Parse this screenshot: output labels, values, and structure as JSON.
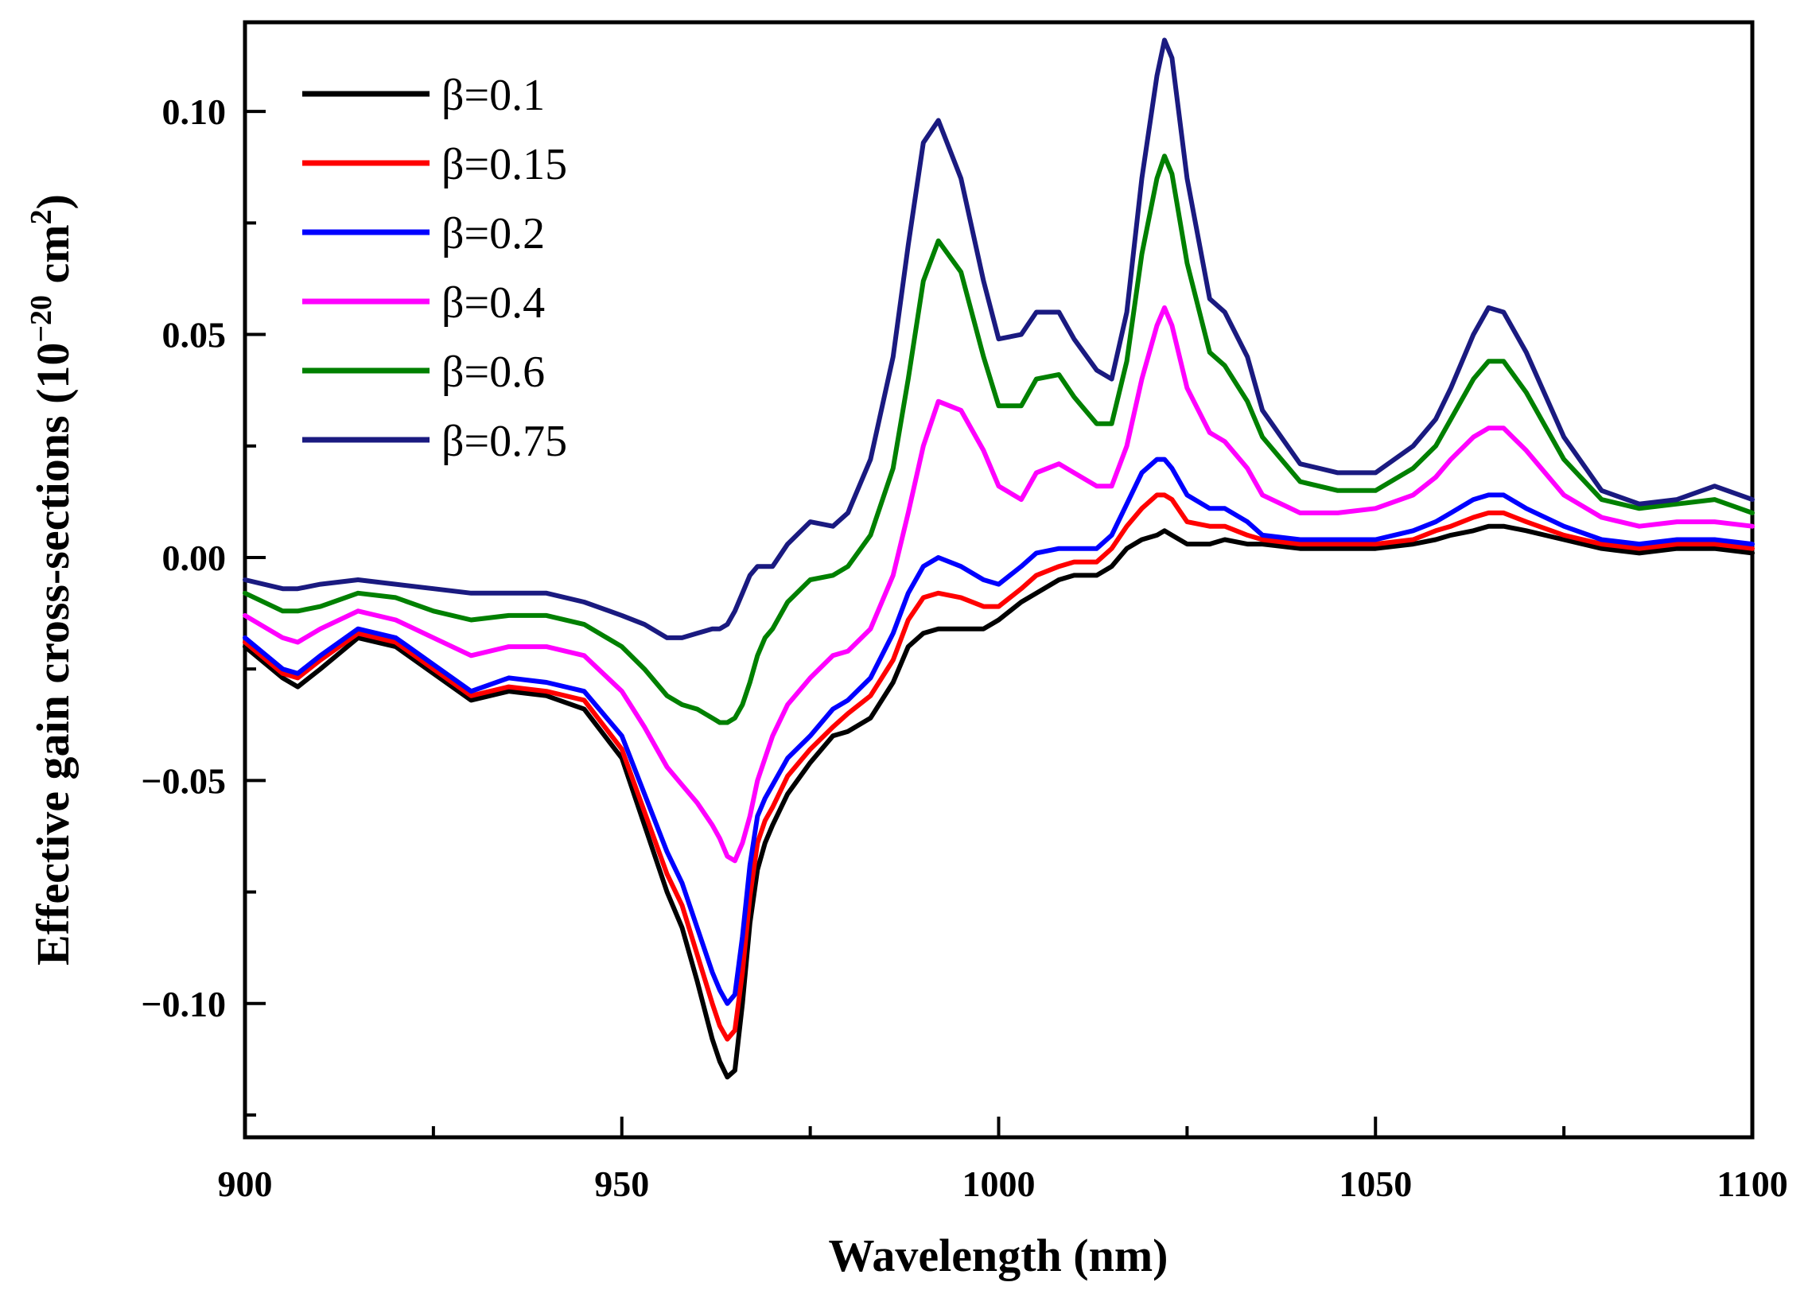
{
  "chart_data": {
    "type": "line",
    "title": "",
    "xlabel": "Wavelength (nm)",
    "ylabel": {
      "prefix": "Effective gain cross-sections (10",
      "exp1": "−20",
      "mid": " cm",
      "exp2": "2",
      "suffix": ")"
    },
    "xlim": [
      900,
      1100
    ],
    "ylim": [
      -0.13,
      0.12
    ],
    "xticks": [
      900,
      950,
      1000,
      1050,
      1100
    ],
    "xtick_labels": [
      "900",
      "950",
      "1000",
      "1050",
      "1100"
    ],
    "yticks": [
      -0.1,
      -0.05,
      0.0,
      0.05,
      0.1
    ],
    "ytick_labels": [
      "−0.10",
      "−0.05",
      "0.00",
      "0.05",
      "0.10"
    ],
    "legend_position": "top-left",
    "grid": false,
    "x": [
      900,
      905,
      907,
      910,
      915,
      920,
      925,
      930,
      935,
      940,
      945,
      950,
      953,
      956,
      958,
      960,
      962,
      963,
      964,
      965,
      966,
      967,
      968,
      969,
      970,
      972,
      975,
      978,
      980,
      983,
      986,
      988,
      990,
      992,
      995,
      998,
      1000,
      1003,
      1005,
      1008,
      1010,
      1013,
      1015,
      1017,
      1019,
      1021,
      1022,
      1023,
      1025,
      1028,
      1030,
      1033,
      1035,
      1040,
      1045,
      1050,
      1055,
      1058,
      1060,
      1063,
      1065,
      1067,
      1070,
      1075,
      1080,
      1085,
      1090,
      1095,
      1100
    ],
    "series": [
      {
        "name": "β=0.1",
        "color": "#000000",
        "values": [
          -0.02,
          -0.027,
          -0.029,
          -0.025,
          -0.018,
          -0.02,
          -0.026,
          -0.032,
          -0.03,
          -0.031,
          -0.034,
          -0.045,
          -0.06,
          -0.075,
          -0.083,
          -0.095,
          -0.108,
          -0.113,
          -0.1165,
          -0.115,
          -0.1,
          -0.082,
          -0.07,
          -0.064,
          -0.06,
          -0.053,
          -0.046,
          -0.04,
          -0.039,
          -0.036,
          -0.028,
          -0.02,
          -0.017,
          -0.016,
          -0.016,
          -0.016,
          -0.014,
          -0.01,
          -0.008,
          -0.005,
          -0.004,
          -0.004,
          -0.002,
          0.002,
          0.004,
          0.005,
          0.006,
          0.005,
          0.003,
          0.003,
          0.004,
          0.003,
          0.003,
          0.002,
          0.002,
          0.002,
          0.003,
          0.004,
          0.005,
          0.006,
          0.007,
          0.007,
          0.006,
          0.004,
          0.002,
          0.001,
          0.002,
          0.002,
          0.001
        ]
      },
      {
        "name": "β=0.15",
        "color": "#ff0000",
        "values": [
          -0.019,
          -0.026,
          -0.027,
          -0.023,
          -0.017,
          -0.019,
          -0.025,
          -0.031,
          -0.029,
          -0.03,
          -0.032,
          -0.043,
          -0.057,
          -0.071,
          -0.078,
          -0.089,
          -0.1,
          -0.105,
          -0.108,
          -0.106,
          -0.093,
          -0.076,
          -0.064,
          -0.059,
          -0.056,
          -0.049,
          -0.043,
          -0.038,
          -0.035,
          -0.031,
          -0.023,
          -0.014,
          -0.009,
          -0.008,
          -0.009,
          -0.011,
          -0.011,
          -0.007,
          -0.004,
          -0.002,
          -0.001,
          -0.001,
          0.002,
          0.007,
          0.011,
          0.014,
          0.014,
          0.013,
          0.008,
          0.007,
          0.007,
          0.005,
          0.004,
          0.003,
          0.003,
          0.003,
          0.004,
          0.006,
          0.007,
          0.009,
          0.01,
          0.01,
          0.008,
          0.005,
          0.003,
          0.002,
          0.003,
          0.003,
          0.002
        ]
      },
      {
        "name": "β=0.2",
        "color": "#0000ff",
        "values": [
          -0.018,
          -0.025,
          -0.026,
          -0.022,
          -0.016,
          -0.018,
          -0.024,
          -0.03,
          -0.027,
          -0.028,
          -0.03,
          -0.04,
          -0.053,
          -0.066,
          -0.073,
          -0.083,
          -0.093,
          -0.097,
          -0.1,
          -0.098,
          -0.085,
          -0.069,
          -0.058,
          -0.054,
          -0.051,
          -0.045,
          -0.04,
          -0.034,
          -0.032,
          -0.027,
          -0.017,
          -0.008,
          -0.002,
          0.0,
          -0.002,
          -0.005,
          -0.006,
          -0.002,
          0.001,
          0.002,
          0.002,
          0.002,
          0.005,
          0.012,
          0.019,
          0.022,
          0.022,
          0.02,
          0.014,
          0.011,
          0.011,
          0.008,
          0.005,
          0.004,
          0.004,
          0.004,
          0.006,
          0.008,
          0.01,
          0.013,
          0.014,
          0.014,
          0.011,
          0.007,
          0.004,
          0.003,
          0.004,
          0.004,
          0.003
        ]
      },
      {
        "name": "β=0.4",
        "color": "#ff00ff",
        "values": [
          -0.013,
          -0.018,
          -0.019,
          -0.016,
          -0.012,
          -0.014,
          -0.018,
          -0.022,
          -0.02,
          -0.02,
          -0.022,
          -0.03,
          -0.038,
          -0.047,
          -0.051,
          -0.055,
          -0.06,
          -0.063,
          -0.067,
          -0.068,
          -0.064,
          -0.058,
          -0.05,
          -0.045,
          -0.04,
          -0.033,
          -0.027,
          -0.022,
          -0.021,
          -0.016,
          -0.004,
          0.01,
          0.025,
          0.035,
          0.033,
          0.024,
          0.016,
          0.013,
          0.019,
          0.021,
          0.019,
          0.016,
          0.016,
          0.025,
          0.04,
          0.052,
          0.056,
          0.052,
          0.038,
          0.028,
          0.026,
          0.02,
          0.014,
          0.01,
          0.01,
          0.011,
          0.014,
          0.018,
          0.022,
          0.027,
          0.029,
          0.029,
          0.024,
          0.014,
          0.009,
          0.007,
          0.008,
          0.008,
          0.007
        ]
      },
      {
        "name": "β=0.6",
        "color": "#008000",
        "values": [
          -0.008,
          -0.012,
          -0.012,
          -0.011,
          -0.008,
          -0.009,
          -0.012,
          -0.014,
          -0.013,
          -0.013,
          -0.015,
          -0.02,
          -0.025,
          -0.031,
          -0.033,
          -0.034,
          -0.036,
          -0.037,
          -0.037,
          -0.036,
          -0.033,
          -0.028,
          -0.022,
          -0.018,
          -0.016,
          -0.01,
          -0.005,
          -0.004,
          -0.002,
          0.005,
          0.02,
          0.04,
          0.062,
          0.071,
          0.064,
          0.045,
          0.034,
          0.034,
          0.04,
          0.041,
          0.036,
          0.03,
          0.03,
          0.044,
          0.068,
          0.085,
          0.09,
          0.086,
          0.066,
          0.046,
          0.043,
          0.035,
          0.027,
          0.017,
          0.015,
          0.015,
          0.02,
          0.025,
          0.031,
          0.04,
          0.044,
          0.044,
          0.037,
          0.022,
          0.013,
          0.011,
          0.012,
          0.013,
          0.01
        ]
      },
      {
        "name": "β=0.75",
        "color": "#1a1a80",
        "values": [
          -0.005,
          -0.007,
          -0.007,
          -0.006,
          -0.005,
          -0.006,
          -0.007,
          -0.008,
          -0.008,
          -0.008,
          -0.01,
          -0.013,
          -0.015,
          -0.018,
          -0.018,
          -0.017,
          -0.016,
          -0.016,
          -0.015,
          -0.012,
          -0.008,
          -0.004,
          -0.002,
          -0.002,
          -0.002,
          0.003,
          0.008,
          0.007,
          0.01,
          0.022,
          0.045,
          0.07,
          0.093,
          0.098,
          0.085,
          0.062,
          0.049,
          0.05,
          0.055,
          0.055,
          0.049,
          0.042,
          0.04,
          0.055,
          0.085,
          0.108,
          0.116,
          0.112,
          0.085,
          0.058,
          0.055,
          0.045,
          0.033,
          0.021,
          0.019,
          0.019,
          0.025,
          0.031,
          0.038,
          0.05,
          0.056,
          0.055,
          0.046,
          0.027,
          0.015,
          0.012,
          0.013,
          0.016,
          0.013
        ]
      }
    ]
  }
}
